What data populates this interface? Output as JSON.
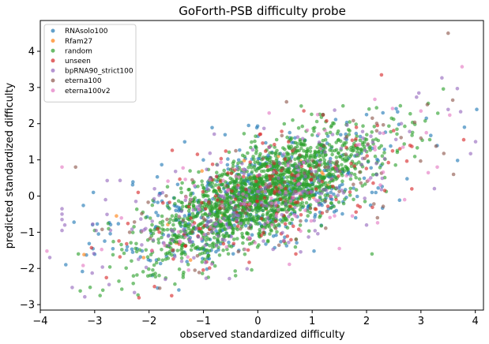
{
  "chart_data": {
    "type": "scatter",
    "title": "GoForth-PSB difficulty probe",
    "xlabel": "observed standardized difficulty",
    "ylabel": "predicted standardized difficulty",
    "xlim": [
      -4,
      4.15
    ],
    "ylim": [
      -3.15,
      4.85
    ],
    "xticks": [
      "−4",
      "−3",
      "−2",
      "−1",
      "0",
      "1",
      "2",
      "3",
      "4"
    ],
    "yticks": [
      "−3",
      "−2",
      "−1",
      "0",
      "1",
      "2",
      "3",
      "4"
    ],
    "xtick_values": [
      -4,
      -3,
      -2,
      -1,
      0,
      1,
      2,
      3,
      4
    ],
    "ytick_values": [
      -3,
      -2,
      -1,
      0,
      1,
      2,
      3,
      4
    ],
    "grid": false,
    "legend_position": "top-left",
    "series": [
      {
        "name": "RNAsolo100",
        "color": "#1f77b4",
        "count": 520,
        "trend": [
          0.0,
          0.45
        ],
        "spread": [
          1.25,
          0.75
        ],
        "points": [
          [
            3.8,
            1.9
          ],
          [
            3.1,
            2.15
          ],
          [
            2.0,
            2.25
          ],
          [
            2.3,
            2.3
          ],
          [
            -2.4,
            -1.4
          ],
          [
            -2.3,
            -1.55
          ],
          [
            1.8,
            -0.6
          ],
          [
            2.1,
            0.1
          ]
        ]
      },
      {
        "name": "Rfam27",
        "color": "#ff7f0e",
        "count": 27,
        "trend": [
          0.0,
          0.5
        ],
        "spread": [
          1.1,
          0.7
        ],
        "points": [
          [
            -2.6,
            -0.55
          ],
          [
            -2.1,
            -1.7
          ],
          [
            -1.5,
            -1.3
          ],
          [
            0.4,
            0.3
          ],
          [
            1.2,
            0.6
          ]
        ]
      },
      {
        "name": "random",
        "color": "#2ca02c",
        "count": 1750,
        "trend": [
          0.1,
          0.62
        ],
        "spread": [
          1.05,
          0.6
        ],
        "points": [
          [
            -2.9,
            -2.75
          ],
          [
            -3.3,
            -1.6
          ],
          [
            -3.0,
            -0.95
          ],
          [
            1.2,
            2.25
          ],
          [
            1.4,
            2.0
          ],
          [
            2.1,
            -1.6
          ],
          [
            -2.85,
            -2.6
          ]
        ]
      },
      {
        "name": "unseen",
        "color": "#d62728",
        "count": 170,
        "trend": [
          0.0,
          0.5
        ],
        "spread": [
          1.2,
          0.8
        ],
        "points": [
          [
            -2.2,
            0.1
          ],
          [
            -1.9,
            -2.5
          ],
          [
            2.2,
            1.95
          ],
          [
            2.8,
            1.4
          ],
          [
            0.7,
            -1.6
          ]
        ]
      },
      {
        "name": "bpRNA90_strict100",
        "color": "#9467bd",
        "count": 220,
        "trend": [
          0.1,
          0.45
        ],
        "spread": [
          1.5,
          0.85
        ],
        "points": [
          [
            -3.6,
            -0.35
          ],
          [
            -3.6,
            -0.5
          ],
          [
            -3.6,
            -0.65
          ],
          [
            -3.55,
            -0.8
          ],
          [
            -3.6,
            -0.95
          ],
          [
            -2.8,
            -0.1
          ],
          [
            -1.9,
            0.2
          ],
          [
            -1.7,
            -2.3
          ],
          [
            -1.4,
            -1.8
          ],
          [
            2.0,
            -0.8
          ]
        ]
      },
      {
        "name": "eterna100",
        "color": "#8c564b",
        "count": 100,
        "trend": [
          0.3,
          0.5
        ],
        "spread": [
          1.5,
          0.85
        ],
        "points": [
          [
            3.5,
            4.5
          ],
          [
            -3.35,
            0.8
          ],
          [
            1.2,
            2.25
          ],
          [
            3.0,
            1.6
          ],
          [
            3.6,
            0.6
          ],
          [
            2.2,
            -0.6
          ],
          [
            -0.2,
            -0.3
          ]
        ]
      },
      {
        "name": "eterna100v2",
        "color": "#e377c2",
        "count": 100,
        "trend": [
          0.3,
          0.5
        ],
        "spread": [
          1.5,
          0.85
        ],
        "points": [
          [
            -3.6,
            0.8
          ],
          [
            3.0,
            2.35
          ],
          [
            3.3,
            0.8
          ],
          [
            3.1,
            1.75
          ],
          [
            1.5,
            -1.45
          ],
          [
            2.7,
            -0.1
          ],
          [
            1.1,
            2.25
          ]
        ]
      }
    ]
  }
}
